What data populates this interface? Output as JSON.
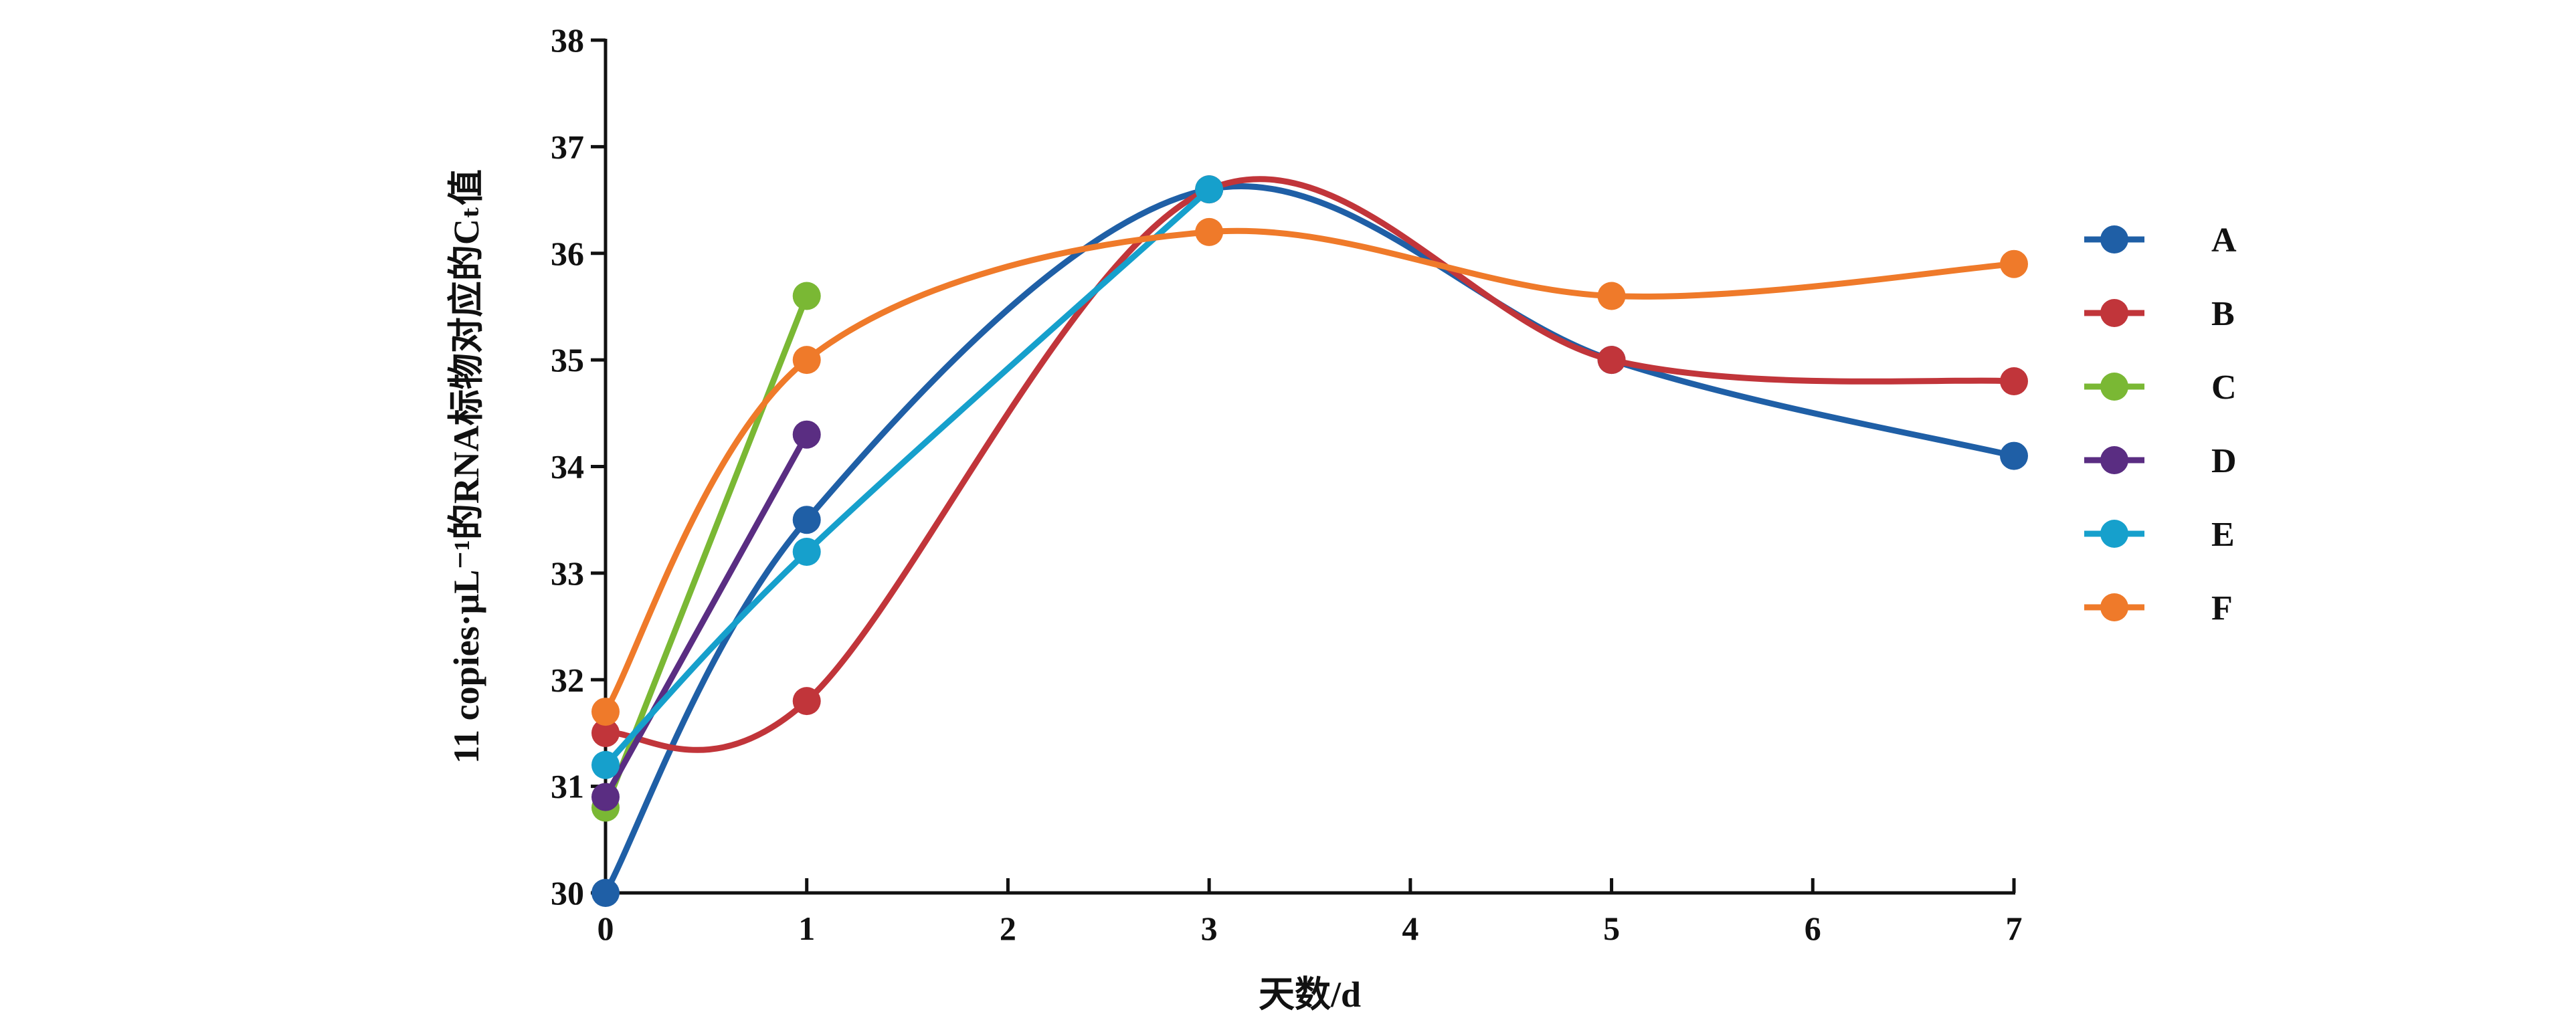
{
  "chart_data": {
    "type": "line",
    "xlabel": "天数/d",
    "ylabel": "11 copies·μL⁻¹的RNA标物对应的Cₜ值",
    "xlim": [
      0,
      7
    ],
    "ylim": [
      30,
      38
    ],
    "x_ticks": [
      "0",
      "1",
      "2",
      "3",
      "4",
      "5",
      "6",
      "7"
    ],
    "y_ticks": [
      "30",
      "31",
      "32",
      "33",
      "34",
      "35",
      "36",
      "37",
      "38"
    ],
    "grid": false,
    "legend_position": "right",
    "series": [
      {
        "name": "A",
        "color": "#1f5fa6",
        "x": [
          0,
          1,
          3,
          5,
          7
        ],
        "y": [
          30.0,
          33.5,
          36.6,
          35.0,
          34.1
        ]
      },
      {
        "name": "B",
        "color": "#c1353a",
        "x": [
          0,
          1,
          3,
          5,
          7
        ],
        "y": [
          31.5,
          31.8,
          36.6,
          35.0,
          34.8
        ]
      },
      {
        "name": "C",
        "color": "#7ab834",
        "x": [
          0,
          1
        ],
        "y": [
          30.8,
          35.6
        ]
      },
      {
        "name": "D",
        "color": "#5a2d82",
        "x": [
          0,
          1
        ],
        "y": [
          30.9,
          34.3
        ]
      },
      {
        "name": "E",
        "color": "#16a0cc",
        "x": [
          0,
          1,
          3
        ],
        "y": [
          31.2,
          33.2,
          36.6
        ]
      },
      {
        "name": "F",
        "color": "#ef7a2a",
        "x": [
          0,
          1,
          3,
          5,
          7
        ],
        "y": [
          31.7,
          35.0,
          36.2,
          35.6,
          35.9
        ]
      }
    ]
  }
}
